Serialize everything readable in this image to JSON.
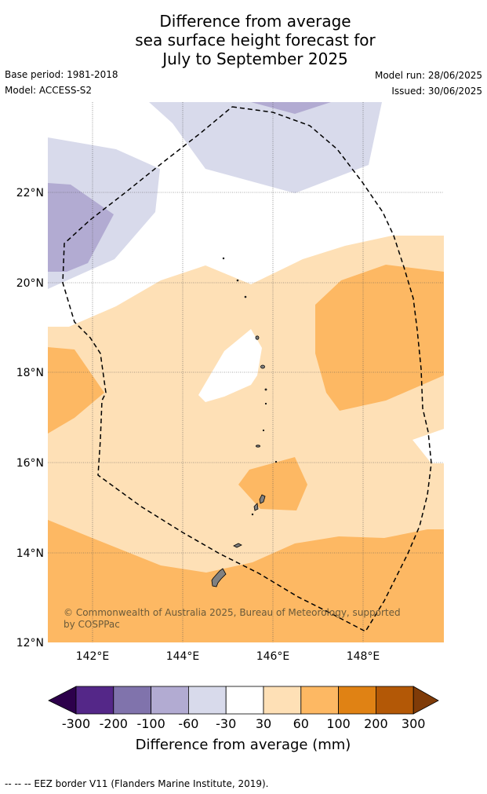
{
  "title": {
    "line1": "Difference from average",
    "line2": "sea surface height forecast for",
    "line3": "July to September 2025"
  },
  "meta": {
    "base_period": "Base period: 1981-2018",
    "model": "Model: ACCESS-S2",
    "model_run": "Model run: 28/06/2025",
    "issued": "Issued: 30/06/2025"
  },
  "map": {
    "lat_ticks": [
      "22°N",
      "20°N",
      "18°N",
      "16°N",
      "14°N",
      "12°N"
    ],
    "lon_ticks": [
      "142°E",
      "144°E",
      "146°E",
      "148°E"
    ],
    "copyright_line1": "© Commonwealth of Australia 2025, Bureau of Meteorology, supported",
    "copyright_line2": "by COSPPac"
  },
  "colorbar": {
    "labels": [
      "-300",
      "-200",
      "-100",
      "-60",
      "-30",
      "30",
      "60",
      "100",
      "200",
      "300"
    ],
    "title": "Difference from average (mm)",
    "colors": [
      "#2d004b",
      "#542788",
      "#8073ac",
      "#b2abd2",
      "#d8daeb",
      "#ffffff",
      "#fee0b6",
      "#fdb863",
      "#e08214",
      "#b35806",
      "#7f3b08"
    ]
  },
  "footnote": "-- -- -- EEZ border V11 (Flanders Marine Institute, 2019)."
}
